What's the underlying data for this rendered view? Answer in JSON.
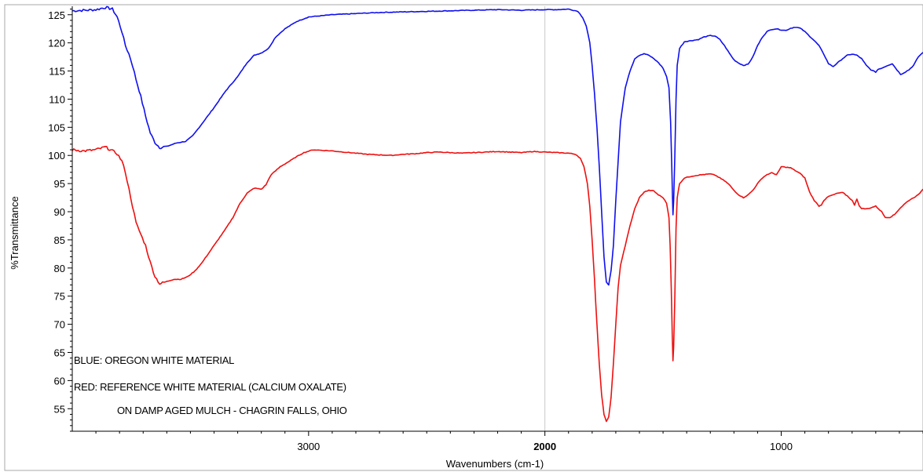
{
  "chart_data": {
    "type": "line",
    "xlabel": "Wavenumbers (cm-1)",
    "ylabel": "%Transmittance",
    "xlim": [
      4000,
      400
    ],
    "x_reversed": true,
    "ylim": [
      51,
      126.5
    ],
    "x_ticks": [
      {
        "value": 3000,
        "label": "3000",
        "bold": false
      },
      {
        "value": 2000,
        "label": "2000",
        "bold": true
      },
      {
        "value": 1000,
        "label": "1000",
        "bold": false
      }
    ],
    "y_ticks": [
      55,
      60,
      65,
      70,
      75,
      80,
      85,
      90,
      95,
      100,
      105,
      110,
      115,
      120,
      125
    ],
    "x_gridlines": [
      2000
    ],
    "annotations": [
      "BLUE: OREGON WHITE MATERIAL",
      "RED: REFERENCE WHITE MATERIAL (CALCIUM OXALATE)",
      "ON DAMP AGED MULCH - CHAGRIN FALLS, OHIO"
    ],
    "series": [
      {
        "color": "#1010ee",
        "points": [
          [
            4000,
            125.7
          ],
          [
            3940,
            125.8
          ],
          [
            3900,
            125.9
          ],
          [
            3860,
            126.3
          ],
          [
            3830,
            126.0
          ],
          [
            3810,
            124.6
          ],
          [
            3790,
            122.0
          ],
          [
            3775,
            119.5
          ],
          [
            3760,
            118.0
          ],
          [
            3745,
            116.0
          ],
          [
            3730,
            113.5
          ],
          [
            3710,
            110.5
          ],
          [
            3690,
            107.0
          ],
          [
            3670,
            104.0
          ],
          [
            3650,
            102.3
          ],
          [
            3630,
            101.4
          ],
          [
            3600,
            101.6
          ],
          [
            3560,
            102.2
          ],
          [
            3520,
            102.5
          ],
          [
            3490,
            103.5
          ],
          [
            3450,
            105.7
          ],
          [
            3400,
            108.5
          ],
          [
            3350,
            111.5
          ],
          [
            3300,
            114.0
          ],
          [
            3260,
            116.5
          ],
          [
            3230,
            117.8
          ],
          [
            3200,
            118.2
          ],
          [
            3170,
            119.0
          ],
          [
            3140,
            121.0
          ],
          [
            3100,
            122.5
          ],
          [
            3050,
            123.8
          ],
          [
            3000,
            124.6
          ],
          [
            2900,
            125.0
          ],
          [
            2800,
            125.2
          ],
          [
            2700,
            125.4
          ],
          [
            2600,
            125.5
          ],
          [
            2500,
            125.6
          ],
          [
            2400,
            125.7
          ],
          [
            2300,
            125.8
          ],
          [
            2200,
            125.9
          ],
          [
            2100,
            125.8
          ],
          [
            2000,
            125.9
          ],
          [
            1950,
            125.9
          ],
          [
            1900,
            126.0
          ],
          [
            1860,
            125.6
          ],
          [
            1840,
            124.5
          ],
          [
            1825,
            123.0
          ],
          [
            1810,
            120.0
          ],
          [
            1800,
            116.0
          ],
          [
            1790,
            111.0
          ],
          [
            1780,
            105.0
          ],
          [
            1770,
            98.0
          ],
          [
            1760,
            90.0
          ],
          [
            1750,
            82.0
          ],
          [
            1740,
            77.5
          ],
          [
            1730,
            77.0
          ],
          [
            1720,
            79.5
          ],
          [
            1710,
            84.0
          ],
          [
            1700,
            92.0
          ],
          [
            1690,
            99.0
          ],
          [
            1680,
            106.0
          ],
          [
            1660,
            112.0
          ],
          [
            1640,
            115.0
          ],
          [
            1620,
            117.2
          ],
          [
            1600,
            117.8
          ],
          [
            1580,
            118.1
          ],
          [
            1560,
            117.8
          ],
          [
            1540,
            117.2
          ],
          [
            1520,
            116.5
          ],
          [
            1500,
            115.5
          ],
          [
            1485,
            114.0
          ],
          [
            1475,
            112.0
          ],
          [
            1468,
            106.0
          ],
          [
            1463,
            98.0
          ],
          [
            1460,
            92.5
          ],
          [
            1458,
            89.5
          ],
          [
            1455,
            92.0
          ],
          [
            1450,
            100.0
          ],
          [
            1445,
            110.0
          ],
          [
            1440,
            116.0
          ],
          [
            1430,
            119.0
          ],
          [
            1410,
            120.2
          ],
          [
            1380,
            120.4
          ],
          [
            1350,
            120.6
          ],
          [
            1330,
            121.0
          ],
          [
            1300,
            121.3
          ],
          [
            1280,
            121.2
          ],
          [
            1260,
            120.6
          ],
          [
            1240,
            119.5
          ],
          [
            1220,
            118.2
          ],
          [
            1200,
            117.0
          ],
          [
            1180,
            116.4
          ],
          [
            1160,
            116.0
          ],
          [
            1140,
            116.2
          ],
          [
            1120,
            117.5
          ],
          [
            1100,
            119.5
          ],
          [
            1080,
            121.0
          ],
          [
            1060,
            122.0
          ],
          [
            1040,
            122.4
          ],
          [
            1020,
            122.5
          ],
          [
            1000,
            122.3
          ],
          [
            980,
            122.2
          ],
          [
            960,
            122.6
          ],
          [
            940,
            122.8
          ],
          [
            920,
            122.6
          ],
          [
            900,
            122.0
          ],
          [
            880,
            121.2
          ],
          [
            860,
            120.4
          ],
          [
            840,
            119.5
          ],
          [
            820,
            118.0
          ],
          [
            800,
            116.3
          ],
          [
            780,
            115.8
          ],
          [
            760,
            116.5
          ],
          [
            740,
            117.2
          ],
          [
            720,
            117.8
          ],
          [
            700,
            118.0
          ],
          [
            680,
            117.8
          ],
          [
            660,
            117.2
          ],
          [
            640,
            116.0
          ],
          [
            620,
            115.2
          ],
          [
            600,
            114.8
          ],
          [
            590,
            115.3
          ],
          [
            570,
            115.6
          ],
          [
            550,
            116.0
          ],
          [
            530,
            116.3
          ],
          [
            510,
            115.2
          ],
          [
            495,
            114.4
          ],
          [
            480,
            114.7
          ],
          [
            460,
            115.2
          ],
          [
            440,
            116.0
          ],
          [
            420,
            117.5
          ],
          [
            400,
            118.3
          ]
        ]
      },
      {
        "color": "#ee1010",
        "points": [
          [
            4000,
            101.0
          ],
          [
            3950,
            100.8
          ],
          [
            3900,
            101.0
          ],
          [
            3860,
            101.5
          ],
          [
            3830,
            100.8
          ],
          [
            3810,
            100.3
          ],
          [
            3790,
            99.0
          ],
          [
            3775,
            97.0
          ],
          [
            3760,
            94.0
          ],
          [
            3745,
            91.0
          ],
          [
            3730,
            88.0
          ],
          [
            3710,
            86.0
          ],
          [
            3690,
            84.0
          ],
          [
            3670,
            81.0
          ],
          [
            3650,
            78.5
          ],
          [
            3630,
            77.2
          ],
          [
            3600,
            77.6
          ],
          [
            3570,
            78.0
          ],
          [
            3540,
            78.0
          ],
          [
            3510,
            78.5
          ],
          [
            3480,
            79.5
          ],
          [
            3450,
            81.0
          ],
          [
            3400,
            84.0
          ],
          [
            3350,
            87.0
          ],
          [
            3320,
            89.0
          ],
          [
            3290,
            91.5
          ],
          [
            3260,
            93.3
          ],
          [
            3230,
            94.2
          ],
          [
            3200,
            94.0
          ],
          [
            3180,
            94.8
          ],
          [
            3160,
            96.5
          ],
          [
            3120,
            98.0
          ],
          [
            3080,
            99.0
          ],
          [
            3050,
            99.8
          ],
          [
            3020,
            100.5
          ],
          [
            2980,
            101.0
          ],
          [
            2940,
            100.9
          ],
          [
            2900,
            100.8
          ],
          [
            2850,
            100.6
          ],
          [
            2800,
            100.4
          ],
          [
            2750,
            100.2
          ],
          [
            2700,
            100.1
          ],
          [
            2650,
            100.0
          ],
          [
            2600,
            100.2
          ],
          [
            2550,
            100.3
          ],
          [
            2500,
            100.5
          ],
          [
            2450,
            100.6
          ],
          [
            2400,
            100.5
          ],
          [
            2350,
            100.4
          ],
          [
            2300,
            100.5
          ],
          [
            2250,
            100.6
          ],
          [
            2200,
            100.7
          ],
          [
            2150,
            100.6
          ],
          [
            2100,
            100.5
          ],
          [
            2050,
            100.7
          ],
          [
            2000,
            100.6
          ],
          [
            1950,
            100.5
          ],
          [
            1900,
            100.4
          ],
          [
            1870,
            100.2
          ],
          [
            1850,
            99.5
          ],
          [
            1835,
            98.0
          ],
          [
            1820,
            95.0
          ],
          [
            1810,
            91.0
          ],
          [
            1800,
            85.0
          ],
          [
            1790,
            78.0
          ],
          [
            1780,
            70.0
          ],
          [
            1770,
            63.0
          ],
          [
            1760,
            57.5
          ],
          [
            1750,
            54.0
          ],
          [
            1740,
            52.7
          ],
          [
            1730,
            53.5
          ],
          [
            1720,
            57.0
          ],
          [
            1710,
            63.0
          ],
          [
            1700,
            70.0
          ],
          [
            1690,
            76.5
          ],
          [
            1680,
            80.5
          ],
          [
            1660,
            84.0
          ],
          [
            1640,
            87.5
          ],
          [
            1620,
            90.5
          ],
          [
            1600,
            92.5
          ],
          [
            1580,
            93.5
          ],
          [
            1560,
            93.8
          ],
          [
            1540,
            93.7
          ],
          [
            1520,
            93.0
          ],
          [
            1500,
            92.5
          ],
          [
            1485,
            91.5
          ],
          [
            1475,
            89.0
          ],
          [
            1470,
            84.0
          ],
          [
            1465,
            76.0
          ],
          [
            1461,
            68.0
          ],
          [
            1458,
            63.5
          ],
          [
            1455,
            66.0
          ],
          [
            1450,
            75.0
          ],
          [
            1445,
            87.0
          ],
          [
            1440,
            92.5
          ],
          [
            1430,
            95.0
          ],
          [
            1410,
            96.0
          ],
          [
            1380,
            96.3
          ],
          [
            1350,
            96.5
          ],
          [
            1330,
            96.6
          ],
          [
            1300,
            96.7
          ],
          [
            1280,
            96.5
          ],
          [
            1260,
            96.0
          ],
          [
            1240,
            95.5
          ],
          [
            1220,
            94.8
          ],
          [
            1200,
            93.8
          ],
          [
            1180,
            93.0
          ],
          [
            1160,
            92.5
          ],
          [
            1140,
            93.0
          ],
          [
            1120,
            93.8
          ],
          [
            1100,
            95.0
          ],
          [
            1080,
            96.0
          ],
          [
            1060,
            96.6
          ],
          [
            1040,
            96.9
          ],
          [
            1020,
            96.6
          ],
          [
            1010,
            97.2
          ],
          [
            1000,
            98.0
          ],
          [
            980,
            97.9
          ],
          [
            960,
            97.8
          ],
          [
            940,
            97.3
          ],
          [
            920,
            96.8
          ],
          [
            900,
            96.0
          ],
          [
            880,
            93.5
          ],
          [
            860,
            92.0
          ],
          [
            840,
            91.0
          ],
          [
            830,
            91.2
          ],
          [
            820,
            92.0
          ],
          [
            800,
            92.7
          ],
          [
            780,
            93.0
          ],
          [
            760,
            93.3
          ],
          [
            740,
            93.4
          ],
          [
            720,
            92.8
          ],
          [
            700,
            92.0
          ],
          [
            690,
            91.2
          ],
          [
            680,
            92.3
          ],
          [
            670,
            91.0
          ],
          [
            660,
            90.6
          ],
          [
            640,
            90.5
          ],
          [
            620,
            90.7
          ],
          [
            600,
            91.0
          ],
          [
            590,
            90.6
          ],
          [
            575,
            90.0
          ],
          [
            560,
            89.0
          ],
          [
            540,
            89.0
          ],
          [
            520,
            89.5
          ],
          [
            500,
            90.5
          ],
          [
            480,
            91.3
          ],
          [
            460,
            92.0
          ],
          [
            440,
            92.5
          ],
          [
            420,
            93.0
          ],
          [
            400,
            94.0
          ]
        ]
      }
    ]
  }
}
